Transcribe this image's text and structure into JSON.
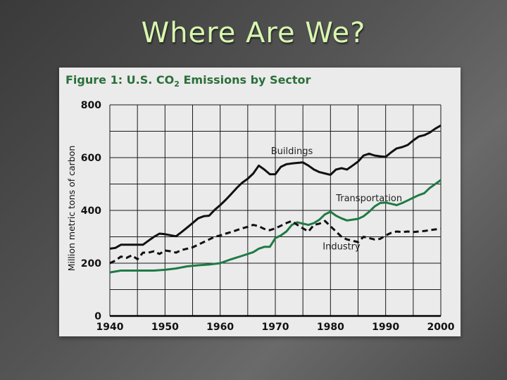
{
  "slide": {
    "title": "Where Are We?"
  },
  "chart_data": {
    "type": "line",
    "title": {
      "prefix": "Figure 1: U.S. CO",
      "subscript": "2",
      "suffix": " Emissions by Sector"
    },
    "xlabel": "",
    "ylabel": "Million metric tons of carbon",
    "xlim": [
      1940,
      2000
    ],
    "ylim": [
      0,
      800
    ],
    "xticks": [
      1940,
      1950,
      1960,
      1970,
      1980,
      1990,
      2000
    ],
    "yticks": [
      0,
      200,
      400,
      600,
      800
    ],
    "ygrid": [
      100,
      200,
      300,
      400,
      500,
      600,
      700
    ],
    "xgrid": [
      1945,
      1950,
      1955,
      1960,
      1965,
      1970,
      1975,
      1980,
      1985,
      1990,
      1995
    ],
    "colors": {
      "buildings": "#111111",
      "transportation": "#1f7a45",
      "industry": "#111111",
      "grid": "#1a1a1a",
      "title": "#2a6f3a"
    },
    "series": [
      {
        "name": "Buildings",
        "style": "solid",
        "color": "#111111",
        "label_at": [
          1973,
          613
        ],
        "x": [
          1940,
          1941,
          1942,
          1943,
          1944,
          1945,
          1946,
          1947,
          1948,
          1949,
          1950,
          1951,
          1952,
          1953,
          1954,
          1955,
          1956,
          1957,
          1958,
          1959,
          1960,
          1961,
          1962,
          1963,
          1964,
          1965,
          1966,
          1967,
          1968,
          1969,
          1970,
          1971,
          1972,
          1973,
          1974,
          1975,
          1976,
          1977,
          1978,
          1979,
          1980,
          1981,
          1982,
          1983,
          1984,
          1985,
          1986,
          1987,
          1988,
          1989,
          1990,
          1991,
          1992,
          1993,
          1994,
          1995,
          1996,
          1997,
          1998,
          1999,
          2000
        ],
        "values": [
          255,
          258,
          270,
          270,
          270,
          270,
          270,
          285,
          300,
          312,
          310,
          306,
          302,
          318,
          335,
          352,
          370,
          378,
          380,
          402,
          420,
          440,
          462,
          485,
          505,
          520,
          540,
          570,
          555,
          537,
          537,
          565,
          575,
          578,
          580,
          582,
          570,
          555,
          545,
          540,
          535,
          555,
          560,
          555,
          570,
          585,
          608,
          615,
          608,
          605,
          603,
          620,
          635,
          640,
          648,
          665,
          680,
          685,
          695,
          710,
          722
        ]
      },
      {
        "name": "Transportation",
        "style": "solid",
        "color": "#1f7a45",
        "label_at": [
          1987,
          435
        ],
        "x": [
          1940,
          1942,
          1944,
          1946,
          1948,
          1950,
          1952,
          1954,
          1956,
          1958,
          1960,
          1962,
          1964,
          1966,
          1967,
          1968,
          1969,
          1970,
          1971,
          1972,
          1973,
          1974,
          1975,
          1976,
          1977,
          1978,
          1979,
          1980,
          1981,
          1982,
          1983,
          1984,
          1985,
          1986,
          1987,
          1988,
          1989,
          1990,
          1991,
          1992,
          1993,
          1994,
          1995,
          1996,
          1997,
          1998,
          1999,
          2000
        ],
        "values": [
          165,
          172,
          172,
          172,
          172,
          175,
          180,
          188,
          192,
          195,
          200,
          215,
          228,
          242,
          255,
          262,
          262,
          295,
          305,
          320,
          345,
          355,
          350,
          345,
          352,
          365,
          385,
          395,
          380,
          370,
          362,
          365,
          368,
          378,
          395,
          415,
          428,
          430,
          425,
          420,
          428,
          438,
          448,
          458,
          465,
          485,
          500,
          515
        ]
      },
      {
        "name": "Industry",
        "style": "dashed",
        "color": "#111111",
        "label_at": [
          1982,
          252
        ],
        "x": [
          1940,
          1941,
          1942,
          1943,
          1944,
          1945,
          1946,
          1947,
          1948,
          1949,
          1950,
          1951,
          1952,
          1953,
          1954,
          1955,
          1956,
          1957,
          1958,
          1959,
          1960,
          1961,
          1962,
          1963,
          1964,
          1965,
          1966,
          1967,
          1968,
          1969,
          1970,
          1971,
          1972,
          1973,
          1974,
          1975,
          1976,
          1977,
          1978,
          1979,
          1980,
          1981,
          1982,
          1983,
          1984,
          1985,
          1986,
          1987,
          1988,
          1989,
          1990,
          1991,
          1992,
          1993,
          1994,
          1995,
          1996,
          1997,
          1998,
          1999,
          2000
        ],
        "values": [
          200,
          210,
          225,
          220,
          230,
          215,
          240,
          240,
          245,
          235,
          248,
          245,
          240,
          250,
          255,
          260,
          270,
          280,
          290,
          300,
          305,
          312,
          318,
          325,
          332,
          338,
          345,
          340,
          330,
          325,
          332,
          342,
          352,
          360,
          345,
          332,
          320,
          345,
          350,
          360,
          340,
          320,
          300,
          290,
          285,
          280,
          300,
          295,
          290,
          292,
          305,
          315,
          320,
          318,
          320,
          318,
          320,
          322,
          325,
          328,
          330
        ]
      }
    ]
  }
}
